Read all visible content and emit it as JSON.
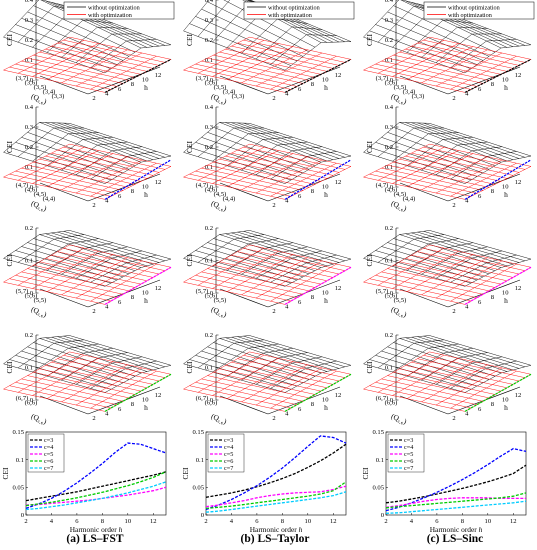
{
  "legend_labels": {
    "without": "without optimization",
    "with": "with optimization"
  },
  "colors": {
    "without": "#000000",
    "with": "#ff0000",
    "c3": "#000000",
    "c4": "#0000ff",
    "c5": "#ff00ff",
    "c6": "#00cc00",
    "c7": "#00ccff"
  },
  "captions": [
    "(a) LS–FST",
    "(b) LS–Taylor",
    "(c) LS–Sinc"
  ],
  "surface_axes": {
    "z_label": "CEI",
    "h_label": "h",
    "q_label": "(Q",
    "q_label_sub": "c,e",
    "q_label_close": ")",
    "h_ticks": [
      "2",
      "4",
      "6",
      "8",
      "10",
      "12"
    ]
  },
  "rows": [
    {
      "c": 3,
      "zticks": [
        "0",
        "0.1",
        "0.2",
        "0.3",
        "0.4"
      ],
      "e_labels": [
        "(3,7)",
        "(3,6)",
        "(3,5)",
        "(3,4)",
        "(3,3)"
      ]
    },
    {
      "c": 4,
      "zticks": [
        "0",
        "0.1",
        "0.2",
        "0.3",
        "0.4"
      ],
      "e_labels": [
        "(4,7)",
        "(4,6)",
        "(4,5)",
        "(4,4)"
      ]
    },
    {
      "c": 5,
      "zticks": [
        "0",
        "0.1",
        "0.2"
      ],
      "e_labels": [
        "(5,7)",
        "(5,6)",
        "(5,5)"
      ]
    },
    {
      "c": 6,
      "zticks": [
        "0",
        "0.1",
        "0.2"
      ],
      "e_labels": [
        "(6,7)",
        "(6,6)"
      ]
    }
  ],
  "chart_data": [
    {
      "type": "line",
      "panel": "(a) LS–FST",
      "xlabel": "Harmonic order",
      "xlabel_var": "h",
      "ylabel": "CEI",
      "xlim": [
        2,
        13
      ],
      "ylim": [
        0,
        0.15
      ],
      "xticks": [
        "2",
        "4",
        "6",
        "8",
        "10",
        "12"
      ],
      "yticks": [
        "0",
        "0.05",
        "0.1",
        "0.15"
      ],
      "x": [
        2,
        3,
        4,
        5,
        6,
        7,
        8,
        9,
        10,
        11,
        12,
        13
      ],
      "series": [
        {
          "name": "c=3",
          "values": [
            0.026,
            0.03,
            0.034,
            0.038,
            0.042,
            0.047,
            0.052,
            0.057,
            0.062,
            0.067,
            0.072,
            0.078
          ]
        },
        {
          "name": "c=4",
          "values": [
            0.012,
            0.02,
            0.03,
            0.043,
            0.058,
            0.075,
            0.093,
            0.113,
            0.13,
            0.128,
            0.12,
            0.112
          ]
        },
        {
          "name": "c=5",
          "values": [
            0.018,
            0.019,
            0.021,
            0.023,
            0.025,
            0.027,
            0.03,
            0.033,
            0.036,
            0.04,
            0.044,
            0.05
          ]
        },
        {
          "name": "c=6",
          "values": [
            0.017,
            0.02,
            0.023,
            0.027,
            0.031,
            0.036,
            0.041,
            0.047,
            0.053,
            0.06,
            0.068,
            0.078
          ]
        },
        {
          "name": "c=7",
          "values": [
            0.01,
            0.012,
            0.015,
            0.018,
            0.022,
            0.026,
            0.03,
            0.035,
            0.04,
            0.046,
            0.052,
            0.06
          ]
        }
      ]
    },
    {
      "type": "line",
      "panel": "(b) LS–Taylor",
      "xlabel": "Harmonic order",
      "xlabel_var": "h",
      "ylabel": "CEI",
      "xlim": [
        2,
        13
      ],
      "ylim": [
        0,
        0.15
      ],
      "xticks": [
        "2",
        "4",
        "6",
        "8",
        "10",
        "12"
      ],
      "yticks": [
        "0",
        "0.05",
        "0.1",
        "0.15"
      ],
      "x": [
        2,
        3,
        4,
        5,
        6,
        7,
        8,
        9,
        10,
        11,
        12,
        13
      ],
      "series": [
        {
          "name": "c=3",
          "values": [
            0.032,
            0.036,
            0.04,
            0.045,
            0.051,
            0.058,
            0.066,
            0.075,
            0.086,
            0.098,
            0.112,
            0.128
          ]
        },
        {
          "name": "c=4",
          "values": [
            0.01,
            0.018,
            0.028,
            0.04,
            0.053,
            0.068,
            0.085,
            0.104,
            0.124,
            0.143,
            0.14,
            0.13
          ]
        },
        {
          "name": "c=5",
          "values": [
            0.015,
            0.018,
            0.022,
            0.026,
            0.031,
            0.035,
            0.038,
            0.04,
            0.041,
            0.042,
            0.046,
            0.052
          ]
        },
        {
          "name": "c=6",
          "values": [
            0.012,
            0.014,
            0.016,
            0.019,
            0.022,
            0.025,
            0.028,
            0.031,
            0.034,
            0.038,
            0.044,
            0.06
          ]
        },
        {
          "name": "c=7",
          "values": [
            0.005,
            0.007,
            0.01,
            0.013,
            0.016,
            0.019,
            0.022,
            0.025,
            0.028,
            0.031,
            0.035,
            0.042
          ]
        }
      ]
    },
    {
      "type": "line",
      "panel": "(c) LS–Sinc",
      "xlabel": "Harmonic order",
      "xlabel_var": "h",
      "ylabel": "CEI",
      "xlim": [
        2,
        13
      ],
      "ylim": [
        0,
        0.15
      ],
      "xticks": [
        "2",
        "4",
        "6",
        "8",
        "10",
        "12"
      ],
      "yticks": [
        "0",
        "0.05",
        "0.1",
        "0.15"
      ],
      "x": [
        2,
        3,
        4,
        5,
        6,
        7,
        8,
        9,
        10,
        11,
        12,
        13
      ],
      "series": [
        {
          "name": "c=3",
          "values": [
            0.022,
            0.025,
            0.029,
            0.033,
            0.038,
            0.043,
            0.048,
            0.054,
            0.06,
            0.067,
            0.075,
            0.09
          ]
        },
        {
          "name": "c=4",
          "values": [
            0.008,
            0.014,
            0.022,
            0.031,
            0.041,
            0.052,
            0.064,
            0.077,
            0.091,
            0.106,
            0.12,
            0.115
          ]
        },
        {
          "name": "c=5",
          "values": [
            0.014,
            0.017,
            0.021,
            0.025,
            0.028,
            0.03,
            0.031,
            0.031,
            0.031,
            0.03,
            0.03,
            0.03
          ]
        },
        {
          "name": "c=6",
          "values": [
            0.013,
            0.015,
            0.017,
            0.019,
            0.021,
            0.023,
            0.025,
            0.027,
            0.029,
            0.031,
            0.034,
            0.04
          ]
        },
        {
          "name": "c=7",
          "values": [
            0.003,
            0.004,
            0.006,
            0.008,
            0.01,
            0.012,
            0.014,
            0.016,
            0.018,
            0.02,
            0.022,
            0.025
          ]
        }
      ]
    }
  ]
}
